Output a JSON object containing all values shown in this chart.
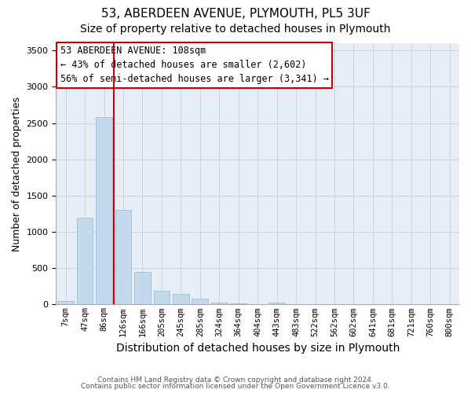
{
  "title1": "53, ABERDEEN AVENUE, PLYMOUTH, PL5 3UF",
  "title2": "Size of property relative to detached houses in Plymouth",
  "xlabel": "Distribution of detached houses by size in Plymouth",
  "ylabel": "Number of detached properties",
  "categories": [
    "7sqm",
    "47sqm",
    "86sqm",
    "126sqm",
    "166sqm",
    "205sqm",
    "245sqm",
    "285sqm",
    "324sqm",
    "364sqm",
    "404sqm",
    "443sqm",
    "483sqm",
    "522sqm",
    "562sqm",
    "602sqm",
    "641sqm",
    "681sqm",
    "721sqm",
    "760sqm",
    "800sqm"
  ],
  "values": [
    50,
    1200,
    2580,
    1300,
    450,
    190,
    140,
    85,
    30,
    10,
    5,
    30,
    5,
    2,
    0,
    0,
    0,
    0,
    0,
    0,
    0
  ],
  "bar_color": "#c5d9ed",
  "bar_edge_color": "#a0bcd8",
  "vline_color": "#cc0000",
  "vline_pos": 2.5,
  "annotation_text": "53 ABERDEEN AVENUE: 108sqm\n← 43% of detached houses are smaller (2,602)\n56% of semi-detached houses are larger (3,341) →",
  "annotation_box_color": "#ffffff",
  "annotation_box_edge": "#cc0000",
  "ylim": [
    0,
    3600
  ],
  "yticks": [
    0,
    500,
    1000,
    1500,
    2000,
    2500,
    3000,
    3500
  ],
  "footer1": "Contains HM Land Registry data © Crown copyright and database right 2024.",
  "footer2": "Contains public sector information licensed under the Open Government Licence v3.0.",
  "background_color": "#ffffff",
  "plot_bg_color": "#e8eef5",
  "grid_color": "#c8d4e0",
  "title1_fontsize": 11,
  "title2_fontsize": 10,
  "ylabel_fontsize": 9,
  "xlabel_fontsize": 10
}
